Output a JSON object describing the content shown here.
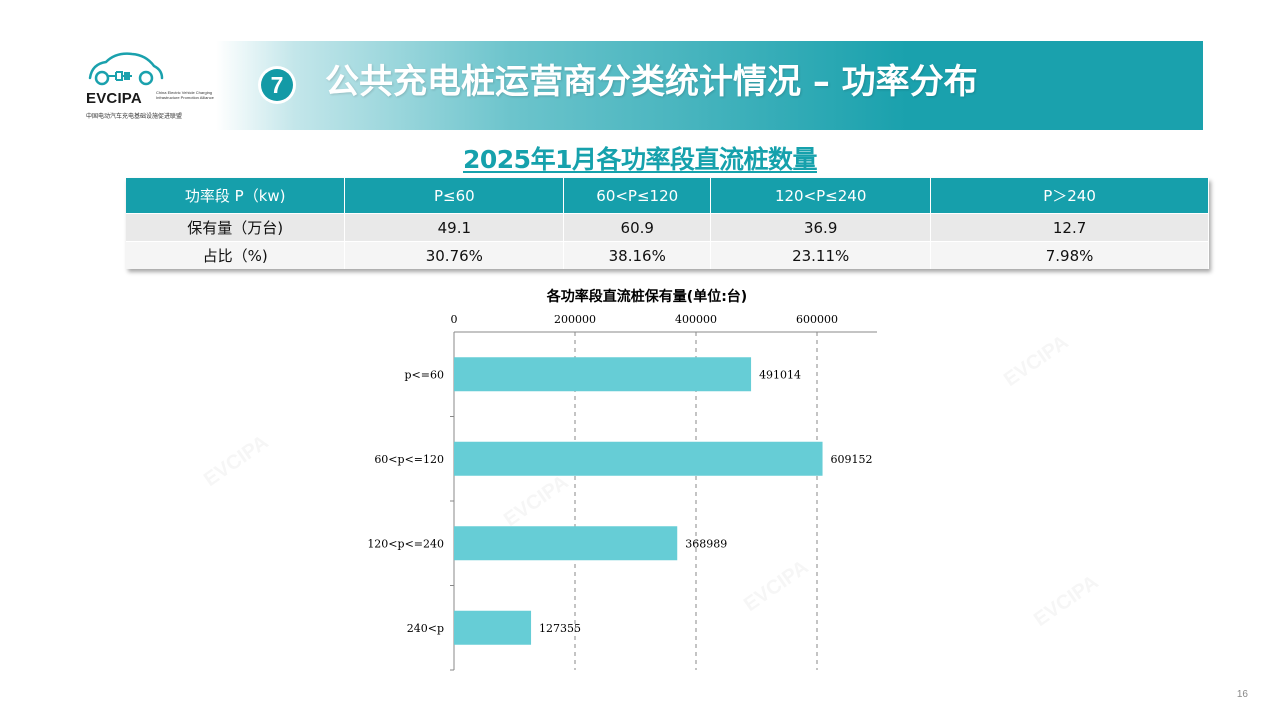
{
  "logo": {
    "brand": "EVCIPA",
    "subtitle": "China Electric Vehicle Charging Infrastructure Promotion Alliance",
    "cn_name": "中国电动汽车充电基础设施促进联盟"
  },
  "header": {
    "step_number": "7",
    "title": "公共充电桩运营商分类统计情况 – 功率分布",
    "accent_color": "#1aa1ad"
  },
  "subtitle": "2025年1月各功率段直流桩数量",
  "table": {
    "headers": [
      "功率段 P（kw)",
      "P≤60",
      "60<P≤120",
      "120<P≤240",
      "P＞240"
    ],
    "rows": [
      [
        "保有量（万台)",
        "49.1",
        "60.9",
        "36.9",
        "12.7"
      ],
      [
        "占比（%)",
        "30.76%",
        "38.16%",
        "23.11%",
        "7.98%"
      ]
    ]
  },
  "chart_data": {
    "type": "bar",
    "orientation": "horizontal",
    "title": "各功率段直流桩保有量(单位:台)",
    "categories": [
      "p<=60",
      "60<p<=120",
      "120<p<=240",
      "240<p"
    ],
    "values": [
      491014,
      609152,
      368989,
      127355
    ],
    "xlim": [
      0,
      700000
    ],
    "xticks": [
      0,
      200000,
      400000,
      600000
    ],
    "xtick_labels": [
      "0",
      "200000",
      "400000",
      "600000"
    ],
    "axis_position": "top",
    "grid": "vertical-dashed",
    "bar_color": "#66cdd6"
  },
  "watermark_text": "EVCIPA",
  "page_number": "16"
}
